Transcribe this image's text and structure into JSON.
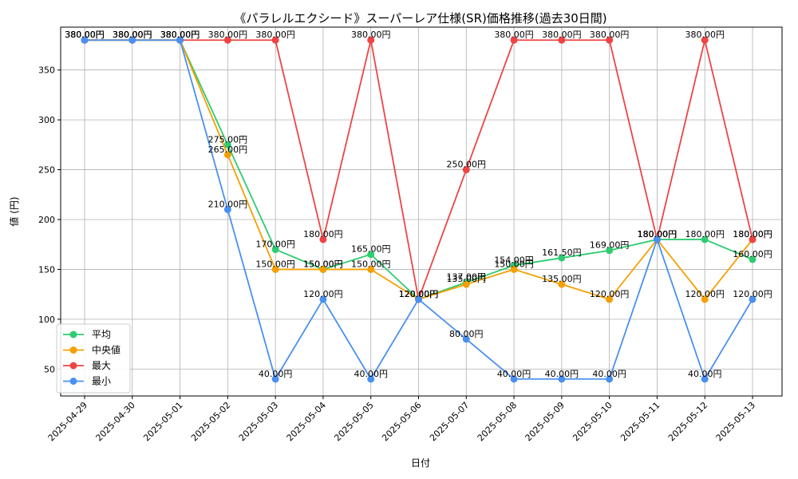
{
  "chart_data": {
    "type": "line",
    "title": "《パラレルエクシード》スーパーレア仕様(SR)価格推移(過去30日間)",
    "xlabel": "日付",
    "ylabel": "値 (円)",
    "categories": [
      "2025-04-29",
      "2025-04-30",
      "2025-05-01",
      "2025-05-02",
      "2025-05-03",
      "2025-05-04",
      "2025-05-05",
      "2025-05-06",
      "2025-05-07",
      "2025-05-08",
      "2025-05-09",
      "2025-05-10",
      "2025-05-11",
      "2025-05-12",
      "2025-05-13"
    ],
    "ylim": [
      23,
      393
    ],
    "yticks": [
      50,
      100,
      150,
      200,
      250,
      300,
      350
    ],
    "grid": true,
    "legend_position": "lower-left",
    "series": [
      {
        "name": "平均",
        "color": "#2ecc71",
        "values": [
          380,
          380,
          380,
          275,
          170,
          150,
          165,
          120,
          137,
          154,
          161.5,
          169,
          180,
          180,
          160
        ],
        "labels": [
          "380.00円",
          "380.00円",
          "380.00円",
          "275.00円",
          "170.00円",
          "150.00円",
          "165.00円",
          "120.00円",
          "137.00円",
          "154.00円",
          "161.50円",
          "169.00円",
          "180.00円",
          "180.00円",
          "160.00円"
        ]
      },
      {
        "name": "中央値",
        "color": "#f5a000",
        "values": [
          380,
          380,
          380,
          265,
          150,
          150,
          150,
          120,
          135,
          150,
          135,
          120,
          180,
          120,
          180
        ],
        "labels": [
          "380.00円",
          "380.00円",
          "380.00円",
          "265.00円",
          "150.00円",
          "150.00円",
          "150.00円",
          "120.00円",
          "135.00円",
          "150.00円",
          "135.00円",
          "120.00円",
          "180.00円",
          "120.00円",
          "180.00円"
        ]
      },
      {
        "name": "最大",
        "color": "#ef4444",
        "values": [
          380,
          380,
          380,
          380,
          380,
          180,
          380,
          120,
          250,
          380,
          380,
          380,
          180,
          380,
          180
        ],
        "labels": [
          "380.00円",
          "380.00円",
          "380.00円",
          "380.00円",
          "380.00円",
          "180.00円",
          "380.00円",
          "120.00円",
          "250.00円",
          "380.00円",
          "380.00円",
          "380.00円",
          "180.00円",
          "380.00円",
          "180.00円"
        ]
      },
      {
        "name": "最小",
        "color": "#4a90f0",
        "values": [
          380,
          380,
          380,
          210,
          40,
          120,
          40,
          120,
          80,
          40,
          40,
          40,
          180,
          40,
          120
        ],
        "labels": [
          "380.00円",
          "380.00円",
          "380.00円",
          "210.00円",
          "40.00円",
          "120.00円",
          "40.00円",
          "120.00円",
          "80.00円",
          "40.00円",
          "40.00円",
          "40.00円",
          "180.00円",
          "40.00円",
          "120.00円"
        ]
      }
    ]
  }
}
